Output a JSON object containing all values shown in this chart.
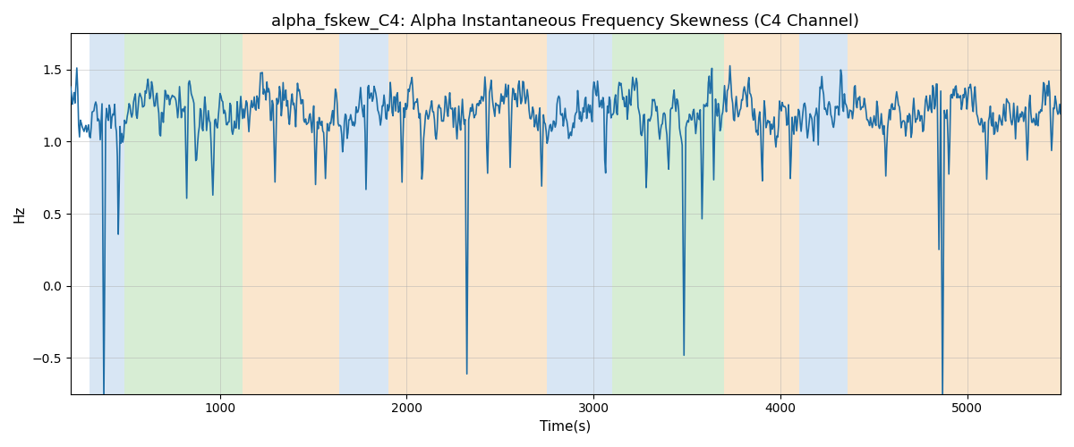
{
  "title": "alpha_fskew_C4: Alpha Instantaneous Frequency Skewness (C4 Channel)",
  "xlabel": "Time(s)",
  "ylabel": "Hz",
  "xlim": [
    200,
    5500
  ],
  "ylim": [
    -0.75,
    1.75
  ],
  "line_color": "#1f6ea6",
  "line_width": 1.2,
  "bg_color": "#ffffff",
  "grid_color": "#aaaaaa",
  "grid_alpha": 0.5,
  "regions": [
    {
      "start": 300,
      "end": 490,
      "color": "#aac8e8",
      "alpha": 0.45
    },
    {
      "start": 490,
      "end": 1120,
      "color": "#a8d8a0",
      "alpha": 0.45
    },
    {
      "start": 1120,
      "end": 1640,
      "color": "#f5c890",
      "alpha": 0.45
    },
    {
      "start": 1640,
      "end": 1900,
      "color": "#aac8e8",
      "alpha": 0.45
    },
    {
      "start": 1900,
      "end": 2750,
      "color": "#f5c890",
      "alpha": 0.45
    },
    {
      "start": 2750,
      "end": 3100,
      "color": "#aac8e8",
      "alpha": 0.45
    },
    {
      "start": 3100,
      "end": 3700,
      "color": "#a8d8a0",
      "alpha": 0.45
    },
    {
      "start": 3700,
      "end": 4100,
      "color": "#f5c890",
      "alpha": 0.45
    },
    {
      "start": 4100,
      "end": 4360,
      "color": "#aac8e8",
      "alpha": 0.45
    },
    {
      "start": 4360,
      "end": 5500,
      "color": "#f5c890",
      "alpha": 0.45
    }
  ],
  "yticks": [
    -0.5,
    0.0,
    0.5,
    1.0,
    1.5
  ],
  "title_fontsize": 13,
  "label_fontsize": 11,
  "tick_fontsize": 10,
  "n_points": 1100
}
